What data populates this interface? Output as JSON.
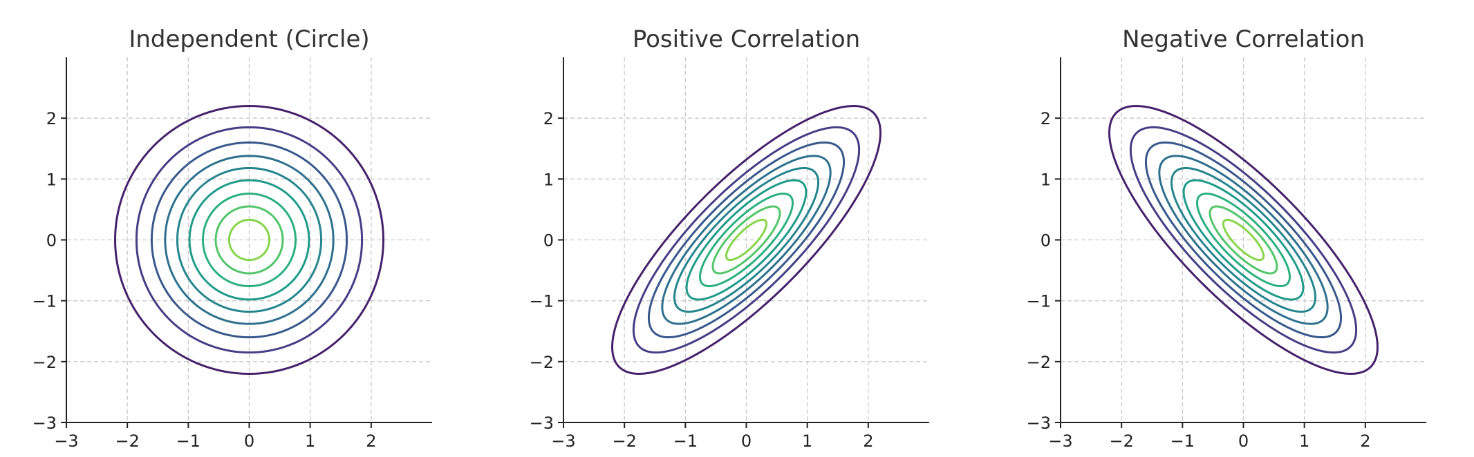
{
  "chart_data": [
    {
      "type": "contour",
      "title": "Independent (Circle)",
      "rho": 0,
      "xlim": [
        -3,
        3
      ],
      "ylim": [
        -3,
        3
      ],
      "xticks": [
        -3,
        -2,
        -1,
        0,
        1,
        2
      ],
      "yticks": [
        -3,
        -2,
        -1,
        0,
        1,
        2
      ],
      "xtick_labels": [
        "−3",
        "−2",
        "−1",
        "0",
        "1",
        "2"
      ],
      "ytick_labels": [
        "−3",
        "−2",
        "−1",
        "0",
        "1",
        "2"
      ],
      "grid": true,
      "levels": [
        2.2,
        1.85,
        1.6,
        1.38,
        1.18,
        0.98,
        0.76,
        0.55,
        0.33
      ]
    },
    {
      "type": "contour",
      "title": "Positive Correlation",
      "rho": 0.8,
      "xlim": [
        -3,
        3
      ],
      "ylim": [
        -3,
        3
      ],
      "xticks": [
        -3,
        -2,
        -1,
        0,
        1,
        2
      ],
      "yticks": [
        -3,
        -2,
        -1,
        0,
        1,
        2
      ],
      "xtick_labels": [
        "−3",
        "−2",
        "−1",
        "0",
        "1",
        "2"
      ],
      "ytick_labels": [
        "−3",
        "−2",
        "−1",
        "0",
        "1",
        "2"
      ],
      "grid": true,
      "levels": [
        2.2,
        1.85,
        1.6,
        1.38,
        1.18,
        0.98,
        0.76,
        0.55,
        0.33
      ]
    },
    {
      "type": "contour",
      "title": "Negative Correlation",
      "rho": -0.8,
      "xlim": [
        -3,
        3
      ],
      "ylim": [
        -3,
        3
      ],
      "xticks": [
        -3,
        -2,
        -1,
        0,
        1,
        2
      ],
      "yticks": [
        -3,
        -2,
        -1,
        0,
        1,
        2
      ],
      "xtick_labels": [
        "−3",
        "−2",
        "−1",
        "0",
        "1",
        "2"
      ],
      "ytick_labels": [
        "−3",
        "−2",
        "−1",
        "0",
        "1",
        "2"
      ],
      "grid": true,
      "levels": [
        2.2,
        1.85,
        1.6,
        1.38,
        1.18,
        0.98,
        0.76,
        0.55,
        0.33
      ]
    }
  ],
  "colors": {
    "contour_levels": [
      "#46216b",
      "#433e85",
      "#38588c",
      "#2d708e",
      "#25858e",
      "#1e9b8a",
      "#2ab07f",
      "#52c569",
      "#86d549"
    ],
    "text": "#333333",
    "grid": "#c8c8c8",
    "axis": "#222222"
  }
}
